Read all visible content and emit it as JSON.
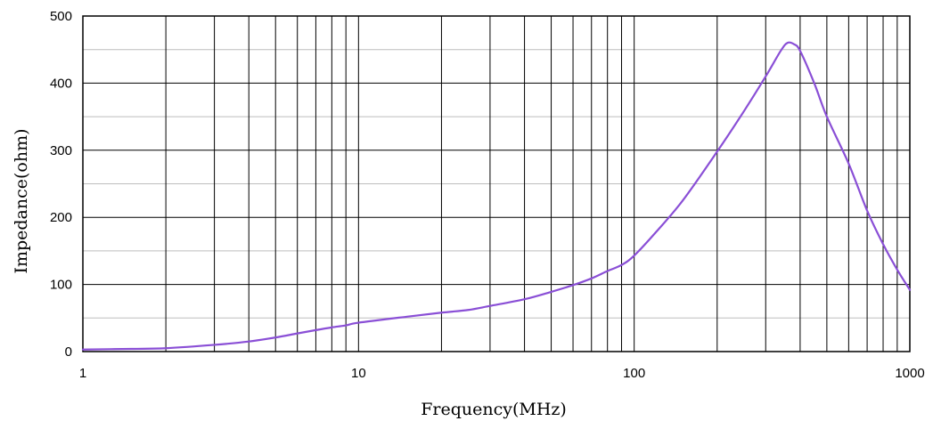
{
  "chart_data": {
    "type": "line",
    "xlabel": "Frequency(MHz)",
    "ylabel": "Impedance(ohm)",
    "x_scale": "log",
    "xlim": [
      1,
      1000
    ],
    "ylim": [
      0,
      500
    ],
    "x_ticks": [
      "1",
      "10",
      "100",
      "1000"
    ],
    "y_ticks": [
      "0",
      "100",
      "200",
      "300",
      "400",
      "500"
    ],
    "grid": true,
    "line_color": "#8a4fd6",
    "series": [
      {
        "x": [
          1,
          1.5,
          2,
          3,
          4,
          5,
          6,
          7,
          8,
          9,
          10,
          15,
          20,
          25,
          30,
          40,
          50,
          60,
          70,
          80,
          90,
          100,
          120,
          150,
          200,
          250,
          300,
          340,
          360,
          380,
          400,
          450,
          500,
          600,
          700,
          800,
          900,
          1000
        ],
        "y": [
          3,
          4,
          5,
          10,
          15,
          21,
          27,
          32,
          36,
          39,
          43,
          52,
          58,
          62,
          68,
          78,
          89,
          99,
          109,
          120,
          129,
          143,
          178,
          225,
          298,
          358,
          410,
          448,
          460,
          458,
          448,
          400,
          350,
          280,
          210,
          160,
          122,
          92
        ]
      }
    ]
  }
}
